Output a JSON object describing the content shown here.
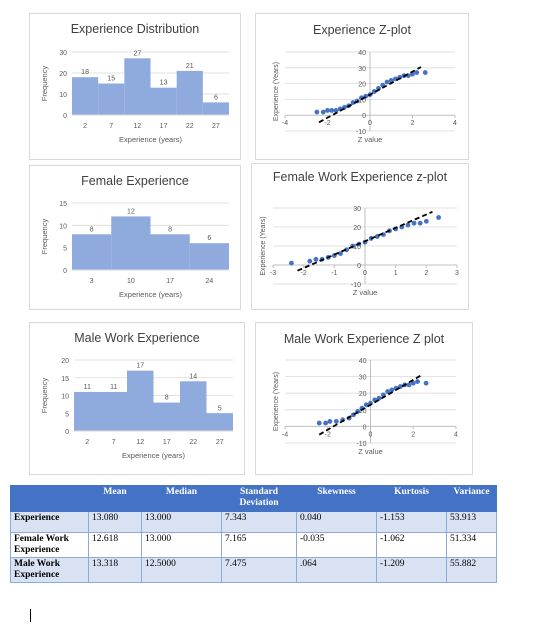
{
  "colors": {
    "bar": "#8faadc",
    "point": "#4472c4",
    "trend": "#000000",
    "axis": "#595959",
    "grid": "#d9d9d9",
    "table_header": "#4472c4",
    "table_stripe": "#d9e2f3"
  },
  "chart_data": [
    {
      "type": "bar",
      "title": "Experience Distribution",
      "categories": [
        "2",
        "7",
        "12",
        "17",
        "22",
        "27"
      ],
      "values": [
        18,
        15,
        27,
        13,
        21,
        6
      ],
      "xlabel": "Experience (years)",
      "ylabel": "Frequency",
      "ylim": [
        0,
        30
      ],
      "yticks": [
        0,
        10,
        20,
        30
      ],
      "grid": true
    },
    {
      "type": "scatter",
      "title": "Experience Z-plot",
      "xlabel": "Z value",
      "ylabel": "Experience (Years)",
      "xlim": [
        -4,
        4
      ],
      "xticks": [
        -4,
        -2,
        0,
        2,
        4
      ],
      "ylim": [
        -10,
        40
      ],
      "yticks": [
        -10,
        0,
        10,
        20,
        30,
        40
      ],
      "trendline": {
        "style": "dashed",
        "x": [
          -2.4,
          2.4
        ],
        "y": [
          -4.5,
          30.5
        ]
      },
      "points": {
        "x": [
          -2.5,
          -2.2,
          -2.0,
          -1.8,
          -1.6,
          -1.4,
          -1.2,
          -1.0,
          -0.8,
          -0.6,
          -0.4,
          -0.2,
          0.0,
          0.2,
          0.4,
          0.6,
          0.8,
          1.0,
          1.2,
          1.4,
          1.6,
          1.8,
          2.0,
          2.2,
          2.6
        ],
        "y": [
          2,
          2,
          3,
          3,
          3,
          4,
          5,
          6,
          8,
          9,
          11,
          12,
          13,
          15,
          17,
          19,
          21,
          22,
          23,
          24,
          25,
          25,
          26,
          27,
          27
        ]
      }
    },
    {
      "type": "bar",
      "title": "Female Experience",
      "categories": [
        "3",
        "10",
        "17",
        "24"
      ],
      "values": [
        8,
        12,
        8,
        6
      ],
      "xlabel": "Experience (years)",
      "ylabel": "Frequency",
      "ylim": [
        0,
        15
      ],
      "yticks": [
        0,
        5,
        10,
        15
      ],
      "grid": true
    },
    {
      "type": "scatter",
      "title": "Female Work Experience z-plot",
      "xlabel": "Z value",
      "ylabel": "Experience (Years)",
      "xlim": [
        -3,
        3
      ],
      "xticks": [
        -3,
        -2,
        -1,
        0,
        1,
        2,
        3
      ],
      "ylim": [
        -10,
        30
      ],
      "yticks": [
        -10,
        0,
        10,
        20,
        30
      ],
      "trendline": {
        "style": "dashed",
        "x": [
          -2.2,
          2.2
        ],
        "y": [
          -3,
          28
        ]
      },
      "points": {
        "x": [
          -2.4,
          -1.8,
          -1.6,
          -1.4,
          -1.2,
          -1.0,
          -0.8,
          -0.6,
          -0.4,
          -0.2,
          0.0,
          0.2,
          0.4,
          0.6,
          0.8,
          1.0,
          1.2,
          1.4,
          1.6,
          1.8,
          2.0,
          2.4
        ],
        "y": [
          1,
          2,
          3,
          3,
          4,
          5,
          6,
          8,
          10,
          11,
          12,
          14,
          15,
          16,
          18,
          19,
          20,
          21,
          22,
          22,
          23,
          25
        ]
      }
    },
    {
      "type": "bar",
      "title": "Male Work Experience",
      "categories": [
        "2",
        "7",
        "12",
        "17",
        "22",
        "27"
      ],
      "values": [
        11,
        11,
        17,
        8,
        14,
        5
      ],
      "xlabel": "Experience (years)",
      "ylabel": "Frequency",
      "ylim": [
        0,
        20
      ],
      "yticks": [
        0,
        5,
        10,
        15,
        20
      ],
      "grid": true
    },
    {
      "type": "scatter",
      "title": "Male Work Experience Z plot",
      "xlabel": "Z value",
      "ylabel": "Experience (Years)",
      "xlim": [
        -4,
        4
      ],
      "xticks": [
        -4,
        -2,
        0,
        2,
        4
      ],
      "ylim": [
        -10,
        40
      ],
      "yticks": [
        -10,
        0,
        10,
        20,
        30,
        40
      ],
      "trendline": {
        "style": "dashed",
        "x": [
          -2.4,
          2.4
        ],
        "y": [
          -5,
          31
        ]
      },
      "points": {
        "x": [
          -2.4,
          -2.1,
          -1.9,
          -1.6,
          -1.3,
          -1.0,
          -0.8,
          -0.6,
          -0.4,
          -0.2,
          0.0,
          0.2,
          0.4,
          0.6,
          0.8,
          1.0,
          1.2,
          1.4,
          1.6,
          1.8,
          2.0,
          2.2,
          2.6
        ],
        "y": [
          2,
          2,
          3,
          3,
          4,
          5,
          7,
          9,
          11,
          13,
          14,
          16,
          17,
          19,
          21,
          22,
          23,
          24,
          25,
          25,
          26,
          27,
          26
        ]
      }
    }
  ],
  "stats_table": {
    "headers": [
      "",
      "Mean",
      "Median",
      "Standard Deviation",
      "Skewness",
      "Kurtosis",
      "Variance"
    ],
    "rows": [
      [
        "Experience",
        "13.080",
        "13.000",
        "7.343",
        "0.040",
        "-1.153",
        "53.913"
      ],
      [
        "Female Work Experience",
        "12.618",
        "13.000",
        "7.165",
        "-0.035",
        "-1.062",
        "51.334"
      ],
      [
        "Male Work Experience",
        "13.318",
        "12.5000",
        "7.475",
        ".064",
        "-1.209",
        "55.882"
      ]
    ]
  }
}
